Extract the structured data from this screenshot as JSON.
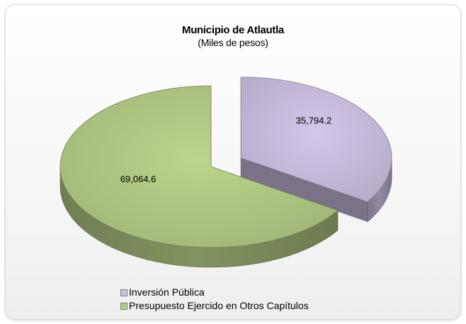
{
  "chart_data": {
    "type": "pie",
    "title": "Municipio de Atlautla",
    "subtitle": "(Miles de pesos)",
    "slices": [
      {
        "label": "Inversión Pública",
        "value": 35794.2,
        "value_label": "35,794.2",
        "color": "#ccc0e2",
        "exploded": true
      },
      {
        "label": "Presupuesto Ejercido en Otros Capítulos",
        "value": 69064.6,
        "value_label": "69,064.6",
        "color": "#b5cc86",
        "exploded": false
      }
    ],
    "legend_position": "bottom-left",
    "style": "3d-exploded"
  }
}
